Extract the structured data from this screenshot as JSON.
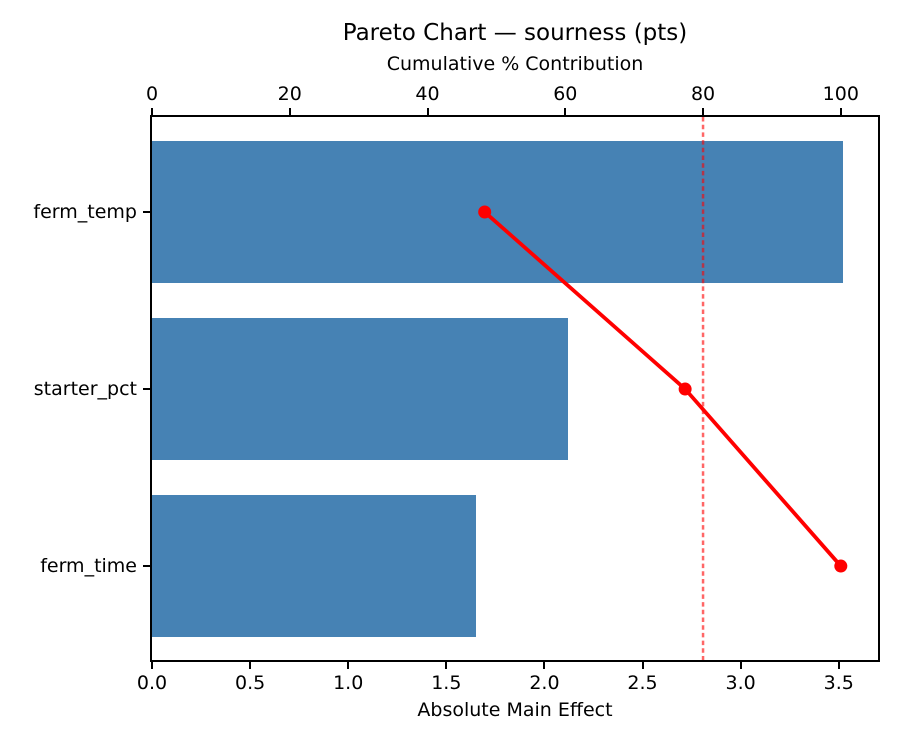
{
  "chart_data": {
    "type": "bar",
    "subtype": "pareto (horizontal bars + cumulative % line)",
    "title": "Pareto Chart — sourness (pts)",
    "categories": [
      "ferm_temp",
      "starter_pct",
      "ferm_time"
    ],
    "values": [
      3.52,
      2.12,
      1.65
    ],
    "cumulative_pct": [
      48.3,
      77.4,
      100.0
    ],
    "threshold_pct": 80,
    "x_axis": {
      "label": "Absolute Main Effect",
      "ticks": [
        0.0,
        0.5,
        1.0,
        1.5,
        2.0,
        2.5,
        3.0,
        3.5
      ],
      "tick_labels": [
        "0.0",
        "0.5",
        "1.0",
        "1.5",
        "2.0",
        "2.5",
        "3.0",
        "3.5"
      ],
      "range": [
        0,
        3.7
      ]
    },
    "top_axis": {
      "label": "Cumulative % Contribution",
      "ticks": [
        0,
        20,
        40,
        60,
        80,
        100
      ],
      "tick_labels": [
        "0",
        "20",
        "40",
        "60",
        "80",
        "100"
      ],
      "range": [
        0,
        105.4
      ]
    },
    "colors": {
      "bar": "#4682B4",
      "line": "#FF0000",
      "marker": "#FF0000",
      "threshold_line": "rgba(255,0,0,0.6)",
      "spine": "#000000",
      "text": "#000000"
    },
    "grid": false,
    "legend": false
  }
}
